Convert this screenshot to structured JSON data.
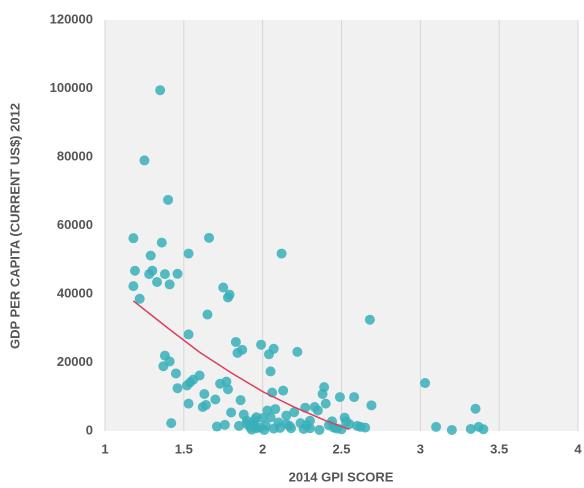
{
  "chart_data": {
    "type": "scatter",
    "xlabel": "2014 GPI SCORE",
    "ylabel": "GDP PER CAPITA (CURRENT US$) 2012",
    "xlim": [
      1,
      4
    ],
    "xticks": [
      1,
      1.5,
      2,
      2.5,
      3,
      3.5,
      4
    ],
    "ylim": [
      0,
      120000
    ],
    "yticks": [
      0,
      20000,
      40000,
      60000,
      80000,
      100000,
      120000
    ],
    "grid": true,
    "series": [
      {
        "color": "#3aafb9",
        "x": [
          1.18,
          1.19,
          1.18,
          1.22,
          1.25,
          1.28,
          1.3,
          1.29,
          1.33,
          1.35,
          1.36,
          1.38,
          1.4,
          1.41,
          1.46,
          1.53,
          1.37,
          1.38,
          1.41,
          1.45,
          1.46,
          1.52,
          1.54,
          1.56,
          1.6,
          1.53,
          1.53,
          1.62,
          1.64,
          1.63,
          1.65,
          1.66,
          1.71,
          1.73,
          1.75,
          1.78,
          1.79,
          1.78,
          1.77,
          1.8,
          1.83,
          1.84,
          1.87,
          1.86,
          1.88,
          1.9,
          1.92,
          1.94,
          1.96,
          1.98,
          1.99,
          2.0,
          2.03,
          2.04,
          2.05,
          2.06,
          2.07,
          2.08,
          2.1,
          2.12,
          2.13,
          2.15,
          2.17,
          2.2,
          2.22,
          2.24,
          2.27,
          2.3,
          2.33,
          2.35,
          2.38,
          2.39,
          2.4,
          2.42,
          2.45,
          2.47,
          2.49,
          2.52,
          2.55,
          2.58,
          2.62,
          2.65,
          2.68,
          2.69,
          3.03,
          3.1,
          3.2,
          3.32,
          3.35,
          3.37,
          3.4,
          1.42,
          1.85,
          1.93,
          2.01,
          2.18,
          1.96,
          2.11,
          2.26,
          2.36,
          1.76,
          1.9,
          2.05,
          2.28,
          2.44,
          2.6,
          1.7,
          1.95,
          2.15,
          2.3,
          2.5,
          2.53,
          2.02,
          2.07
        ],
        "values": [
          56300,
          46800,
          42300,
          38600,
          79000,
          45800,
          46800,
          51200,
          43500,
          99500,
          55000,
          45800,
          67500,
          42800,
          45900,
          51800,
          18900,
          22000,
          20300,
          16800,
          12500,
          13300,
          14200,
          15000,
          16200,
          28200,
          8000,
          7000,
          7600,
          10800,
          34000,
          56400,
          1300,
          13800,
          41900,
          39000,
          39800,
          12200,
          14400,
          5400,
          26000,
          22800,
          23700,
          9000,
          4800,
          3000,
          1200,
          2300,
          4000,
          1000,
          25200,
          3800,
          6000,
          22400,
          17400,
          11200,
          24000,
          6400,
          2500,
          51800,
          11800,
          4500,
          1500,
          5500,
          23100,
          2300,
          6800,
          3000,
          7000,
          6000,
          10800,
          12800,
          8000,
          1700,
          1000,
          700,
          9900,
          3900,
          2000,
          9900,
          1200,
          1000,
          32500,
          7500,
          14000,
          1200,
          300,
          600,
          6500,
          1200,
          500,
          2300,
          1500,
          400,
          300,
          800,
          800,
          900,
          600,
          300,
          1800,
          2100,
          4000,
          1700,
          2800,
          1500,
          9200,
          3200,
          2000,
          800,
          500,
          2800,
          1600,
          700
        ]
      }
    ],
    "trend": {
      "color": "#d9415f",
      "x": [
        1.18,
        1.4,
        1.6,
        1.8,
        2.0,
        2.2,
        2.4,
        2.55
      ],
      "values": [
        38000,
        30000,
        23000,
        17000,
        11500,
        7000,
        3000,
        500
      ]
    }
  }
}
